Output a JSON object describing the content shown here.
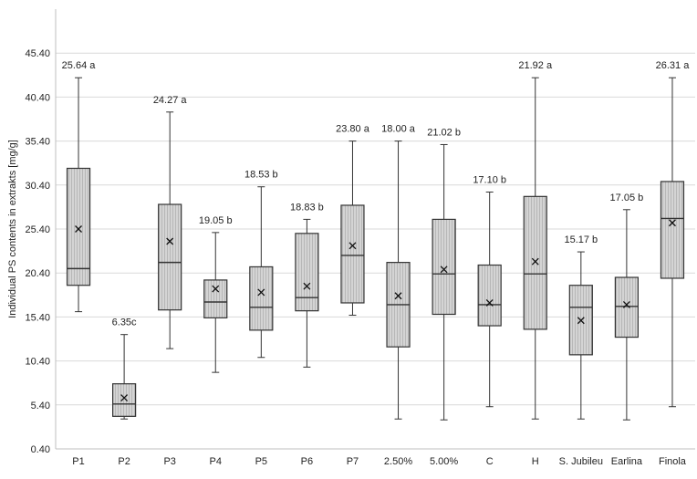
{
  "chart_data": {
    "type": "box",
    "title": "",
    "xlabel": "",
    "ylabel": "Individual PS contents in extrakts [mg/g]",
    "ylim": [
      0.4,
      50.4
    ],
    "yticks": [
      0.4,
      5.4,
      10.4,
      15.4,
      20.4,
      25.4,
      30.4,
      35.4,
      40.4,
      45.4
    ],
    "ytick_labels": [
      "0.40",
      "5.40",
      "10.40",
      "15.40",
      "20.40",
      "25.40",
      "30.40",
      "35.40",
      "40.40",
      "45.40"
    ],
    "grid": true,
    "colors": {
      "box_fill": "#c9c9c9",
      "box_stroke": "#333333",
      "grid": "#d9d9d9",
      "axis": "#bfbfbf"
    },
    "categories": [
      "P1",
      "P2",
      "P3",
      "P4",
      "P5",
      "P6",
      "P7",
      "2.50%",
      "5.00%",
      "C",
      "H",
      "S. Jubileu",
      "Earlina",
      "Finola"
    ],
    "boxes": [
      {
        "min": 16.0,
        "q1": 19.0,
        "median": 20.9,
        "q3": 32.3,
        "max": 42.6,
        "mean": 25.4,
        "label": "25.64 a"
      },
      {
        "min": 3.8,
        "q1": 4.1,
        "median": 5.5,
        "q3": 7.8,
        "max": 13.4,
        "mean": 6.2,
        "label": "6.35c"
      },
      {
        "min": 11.8,
        "q1": 16.2,
        "median": 21.6,
        "q3": 28.2,
        "max": 38.7,
        "mean": 24.0,
        "label": "24.27 a"
      },
      {
        "min": 9.1,
        "q1": 15.3,
        "median": 17.1,
        "q3": 19.6,
        "max": 25.0,
        "mean": 18.6,
        "label": "19.05 b"
      },
      {
        "min": 10.8,
        "q1": 13.9,
        "median": 16.5,
        "q3": 21.1,
        "max": 30.2,
        "mean": 18.2,
        "label": "18.53 b"
      },
      {
        "min": 9.7,
        "q1": 16.1,
        "median": 17.6,
        "q3": 24.9,
        "max": 26.5,
        "mean": 18.9,
        "label": "18.83 b"
      },
      {
        "min": 15.6,
        "q1": 17.0,
        "median": 22.4,
        "q3": 28.1,
        "max": 35.4,
        "mean": 23.5,
        "label": "23.80 a"
      },
      {
        "min": 3.8,
        "q1": 12.0,
        "median": 16.8,
        "q3": 21.6,
        "max": 35.4,
        "mean": 17.8,
        "label": "18.00 a"
      },
      {
        "min": 3.7,
        "q1": 15.7,
        "median": 20.3,
        "q3": 26.5,
        "max": 35.0,
        "mean": 20.8,
        "label": "21.02 b"
      },
      {
        "min": 5.2,
        "q1": 14.4,
        "median": 16.8,
        "q3": 21.3,
        "max": 29.6,
        "mean": 17.0,
        "label": "17.10 b"
      },
      {
        "min": 3.8,
        "q1": 14.0,
        "median": 20.3,
        "q3": 29.1,
        "max": 42.6,
        "mean": 21.7,
        "label": "21.92 a"
      },
      {
        "min": 3.8,
        "q1": 11.1,
        "median": 16.5,
        "q3": 19.0,
        "max": 22.8,
        "mean": 15.0,
        "label": "15.17 b"
      },
      {
        "min": 3.7,
        "q1": 13.1,
        "median": 16.6,
        "q3": 19.9,
        "max": 27.6,
        "mean": 16.8,
        "label": "17.05 b"
      },
      {
        "min": 5.2,
        "q1": 19.8,
        "median": 26.6,
        "q3": 30.8,
        "max": 42.6,
        "mean": 26.1,
        "label": "26.31 a"
      }
    ]
  }
}
